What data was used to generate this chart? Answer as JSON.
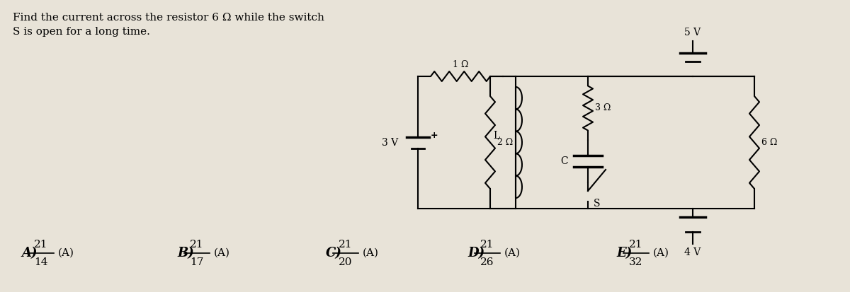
{
  "title_line1": "Find the current across the resistor 6 Ω while the switch",
  "title_line2": "S is open for a long time.",
  "background_color": "#e8e3d8",
  "options": [
    {
      "label": "A",
      "num": "21",
      "den": "14"
    },
    {
      "label": "B",
      "num": "21",
      "den": "17"
    },
    {
      "label": "C",
      "num": "21",
      "den": "20"
    },
    {
      "label": "D",
      "num": "21",
      "den": "26"
    },
    {
      "label": "E",
      "num": "21",
      "den": "32"
    }
  ],
  "circuit": {
    "voltage_3v": "3 V",
    "voltage_5v": "5 V",
    "voltage_4v": "4 V",
    "r1": "1 Ω",
    "r2": "2 Ω",
    "r3": "3 Ω",
    "r6": "6 Ω",
    "inductor_label": "L",
    "capacitor_label": "C",
    "switch_label": "S"
  },
  "figsize": [
    12.0,
    4.13
  ],
  "dpi": 100
}
